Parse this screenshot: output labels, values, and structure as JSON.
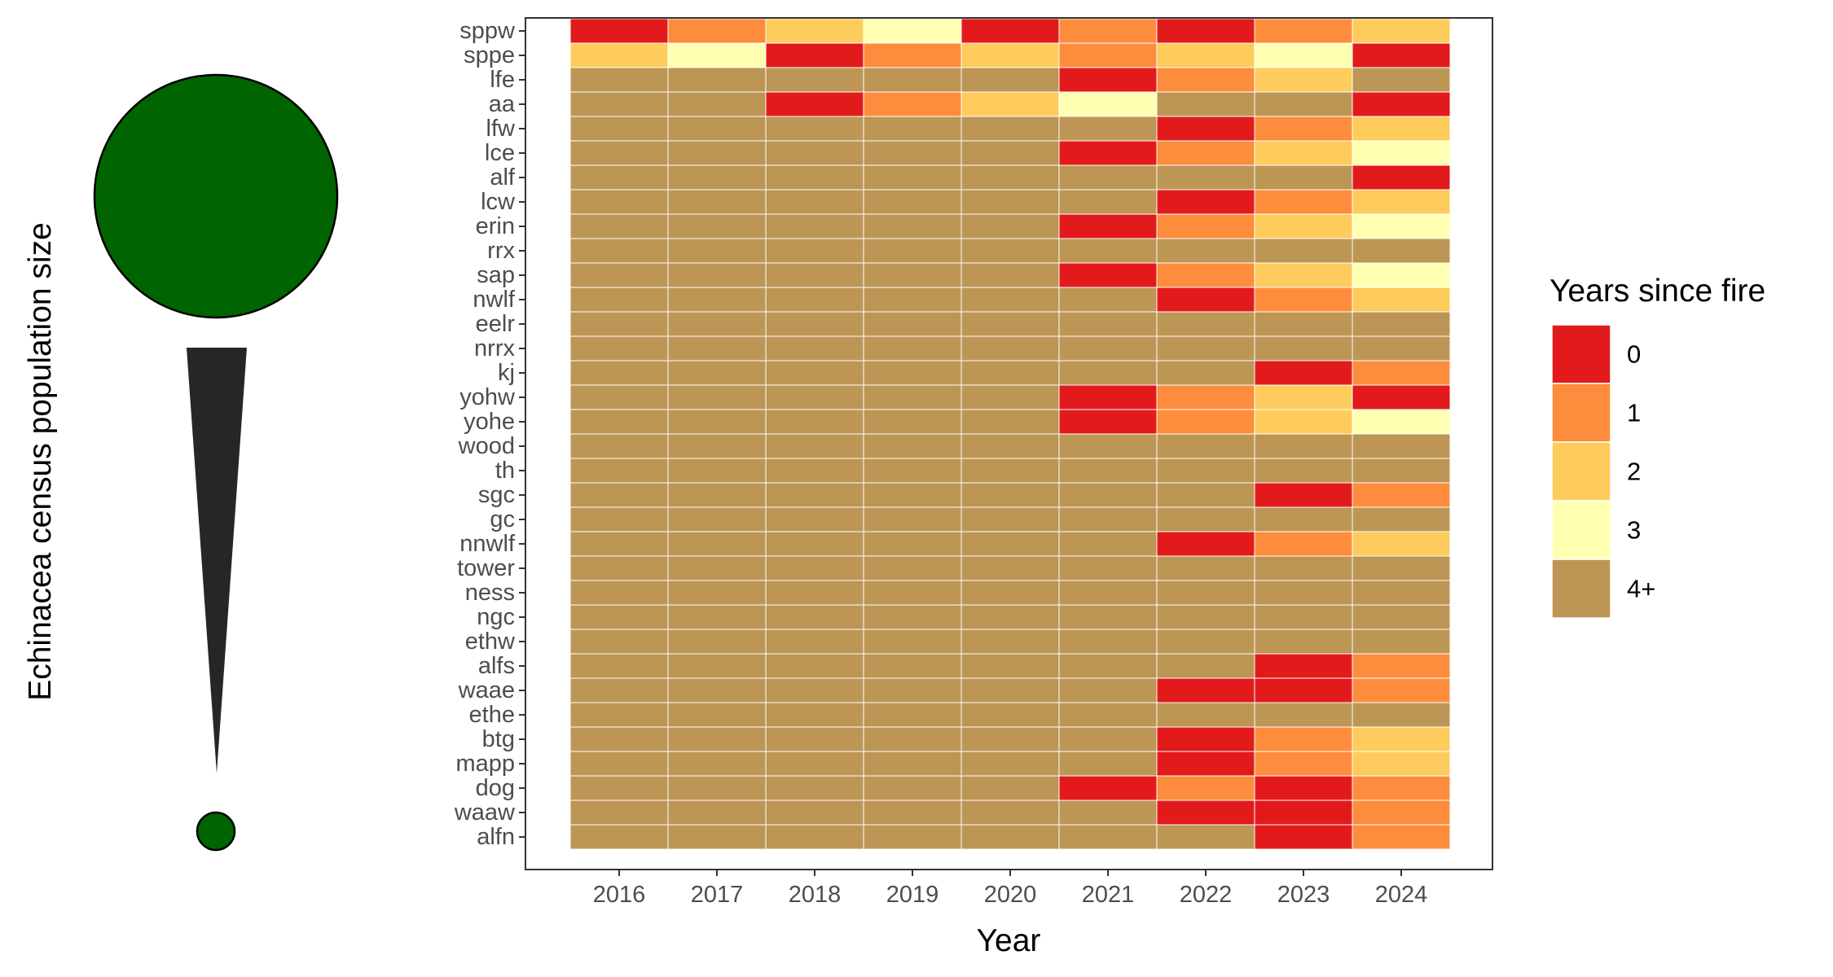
{
  "chart_data": {
    "type": "heatmap",
    "xlabel": "Year",
    "ylabel": "Echinacea census population size",
    "x": [
      "2016",
      "2017",
      "2018",
      "2019",
      "2020",
      "2021",
      "2022",
      "2023",
      "2024"
    ],
    "y": [
      "sppw",
      "sppe",
      "lfe",
      "aa",
      "lfw",
      "lce",
      "alf",
      "lcw",
      "erin",
      "rrx",
      "sap",
      "nwlf",
      "eelr",
      "nrrx",
      "kj",
      "yohw",
      "yohe",
      "wood",
      "th",
      "sgc",
      "gc",
      "nnwlf",
      "tower",
      "ness",
      "ngc",
      "ethw",
      "alfs",
      "waae",
      "ethe",
      "btg",
      "mapp",
      "dog",
      "waaw",
      "alfn"
    ],
    "values": [
      [
        0,
        1,
        2,
        3,
        0,
        1,
        0,
        1,
        2
      ],
      [
        2,
        3,
        0,
        1,
        2,
        1,
        2,
        3,
        0
      ],
      [
        4,
        4,
        4,
        4,
        4,
        0,
        1,
        2,
        4
      ],
      [
        4,
        4,
        0,
        1,
        2,
        3,
        4,
        4,
        0
      ],
      [
        4,
        4,
        4,
        4,
        4,
        4,
        0,
        1,
        2
      ],
      [
        4,
        4,
        4,
        4,
        4,
        0,
        1,
        2,
        3
      ],
      [
        4,
        4,
        4,
        4,
        4,
        4,
        4,
        4,
        0
      ],
      [
        4,
        4,
        4,
        4,
        4,
        4,
        0,
        1,
        2
      ],
      [
        4,
        4,
        4,
        4,
        4,
        0,
        1,
        2,
        3
      ],
      [
        4,
        4,
        4,
        4,
        4,
        4,
        4,
        4,
        4
      ],
      [
        4,
        4,
        4,
        4,
        4,
        0,
        1,
        2,
        3
      ],
      [
        4,
        4,
        4,
        4,
        4,
        4,
        0,
        1,
        2
      ],
      [
        4,
        4,
        4,
        4,
        4,
        4,
        4,
        4,
        4
      ],
      [
        4,
        4,
        4,
        4,
        4,
        4,
        4,
        4,
        4
      ],
      [
        4,
        4,
        4,
        4,
        4,
        4,
        4,
        0,
        1
      ],
      [
        4,
        4,
        4,
        4,
        4,
        0,
        1,
        2,
        0
      ],
      [
        4,
        4,
        4,
        4,
        4,
        0,
        1,
        2,
        3
      ],
      [
        4,
        4,
        4,
        4,
        4,
        4,
        4,
        4,
        4
      ],
      [
        4,
        4,
        4,
        4,
        4,
        4,
        4,
        4,
        4
      ],
      [
        4,
        4,
        4,
        4,
        4,
        4,
        4,
        0,
        1
      ],
      [
        4,
        4,
        4,
        4,
        4,
        4,
        4,
        4,
        4
      ],
      [
        4,
        4,
        4,
        4,
        4,
        4,
        0,
        1,
        2
      ],
      [
        4,
        4,
        4,
        4,
        4,
        4,
        4,
        4,
        4
      ],
      [
        4,
        4,
        4,
        4,
        4,
        4,
        4,
        4,
        4
      ],
      [
        4,
        4,
        4,
        4,
        4,
        4,
        4,
        4,
        4
      ],
      [
        4,
        4,
        4,
        4,
        4,
        4,
        4,
        4,
        4
      ],
      [
        4,
        4,
        4,
        4,
        4,
        4,
        4,
        0,
        1
      ],
      [
        4,
        4,
        4,
        4,
        4,
        4,
        0,
        0,
        1
      ],
      [
        4,
        4,
        4,
        4,
        4,
        4,
        4,
        4,
        4
      ],
      [
        4,
        4,
        4,
        4,
        4,
        4,
        0,
        1,
        2
      ],
      [
        4,
        4,
        4,
        4,
        4,
        4,
        0,
        1,
        2
      ],
      [
        4,
        4,
        4,
        4,
        4,
        0,
        1,
        0,
        1
      ],
      [
        4,
        4,
        4,
        4,
        4,
        4,
        0,
        0,
        1
      ],
      [
        4,
        4,
        4,
        4,
        4,
        4,
        4,
        0,
        1
      ]
    ],
    "legend": {
      "title": "Years since fire",
      "position": "right",
      "entries": [
        {
          "label": "0",
          "color": "#e31a1c"
        },
        {
          "label": "1",
          "color": "#fd8d3c"
        },
        {
          "label": "2",
          "color": "#fecc5c"
        },
        {
          "label": "3",
          "color": "#ffffb2"
        },
        {
          "label": "4+",
          "color": "#bd9655"
        }
      ]
    },
    "side_glyph": {
      "description_colors": {
        "circle": "#006400",
        "wedge": "#262626"
      }
    },
    "grid": false
  }
}
